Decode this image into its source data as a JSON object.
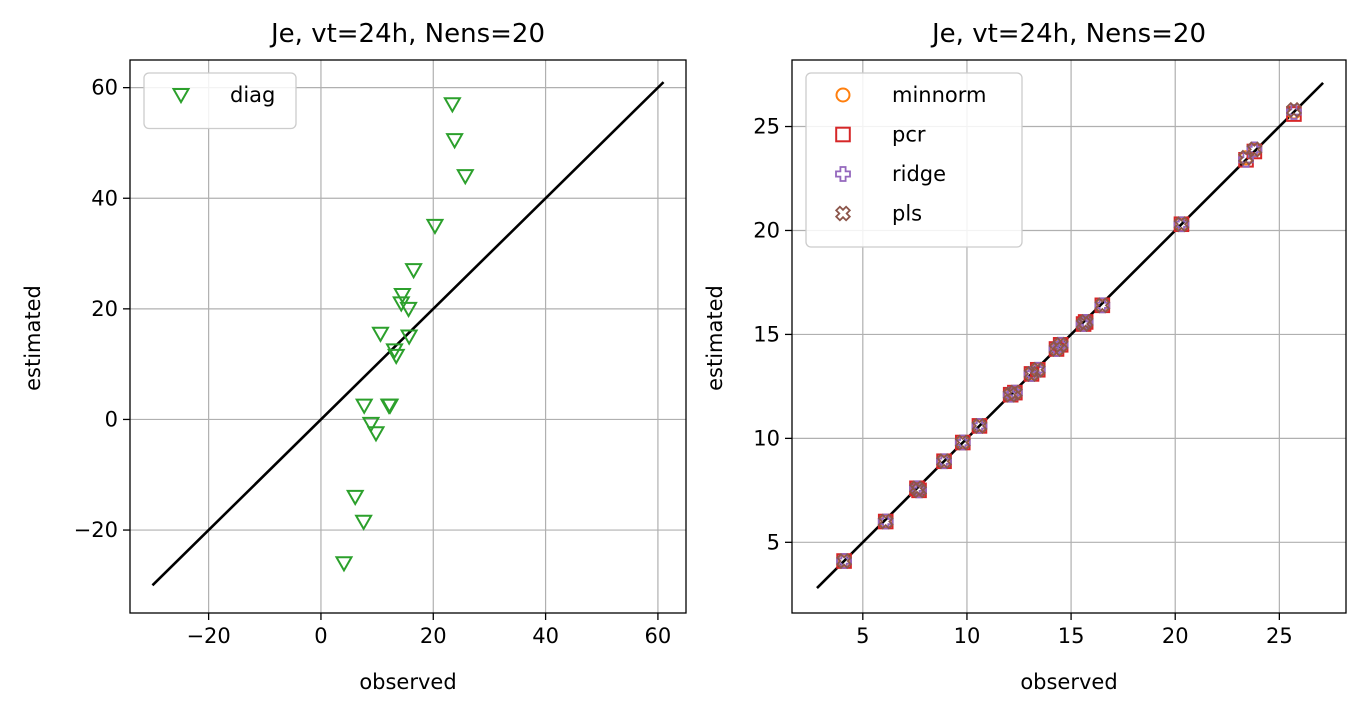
{
  "chart_data": [
    {
      "type": "scatter",
      "title": "Je, vt=24h, Nens=20",
      "xlabel": "observed",
      "ylabel": "estimated",
      "xlim": [
        -34,
        65
      ],
      "ylim": [
        -35,
        65
      ],
      "xticks": [
        -20,
        0,
        20,
        40,
        60
      ],
      "yticks": [
        -20,
        0,
        20,
        40,
        60
      ],
      "xtick_labels": [
        "−20",
        "0",
        "20",
        "40",
        "60"
      ],
      "ytick_labels": [
        "−20",
        "0",
        "20",
        "40",
        "60"
      ],
      "grid": true,
      "legend_position": "upper-left",
      "reference_line": [
        [
          -30,
          -30
        ],
        [
          61,
          61
        ]
      ],
      "series": [
        {
          "name": "diag",
          "marker": "triangle-down",
          "color": "#2ca02c",
          "points": [
            [
              4.1,
              -26
            ],
            [
              6.1,
              -14
            ],
            [
              7.6,
              -18.5
            ],
            [
              7.7,
              2.5
            ],
            [
              8.9,
              -0.8
            ],
            [
              9.8,
              -2.5
            ],
            [
              10.6,
              15.5
            ],
            [
              12.1,
              2.5
            ],
            [
              12.3,
              2.5
            ],
            [
              13.1,
              12.5
            ],
            [
              13.4,
              11.5
            ],
            [
              14.3,
              21
            ],
            [
              14.5,
              22.5
            ],
            [
              15.6,
              20
            ],
            [
              15.7,
              15
            ],
            [
              16.5,
              27
            ],
            [
              20.3,
              35
            ],
            [
              23.4,
              57
            ],
            [
              23.8,
              50.5
            ],
            [
              25.7,
              44
            ]
          ]
        }
      ]
    },
    {
      "type": "scatter",
      "title": "Je, vt=24h, Nens=20",
      "xlabel": "observed",
      "ylabel": "estimated",
      "xlim": [
        1.6,
        28.2
      ],
      "ylim": [
        1.6,
        28.2
      ],
      "xticks": [
        5,
        10,
        15,
        20,
        25
      ],
      "yticks": [
        5,
        10,
        15,
        20,
        25
      ],
      "xtick_labels": [
        "5",
        "10",
        "15",
        "20",
        "25"
      ],
      "ytick_labels": [
        "5",
        "10",
        "15",
        "20",
        "25"
      ],
      "grid": true,
      "legend_position": "upper-left",
      "reference_line": [
        [
          2.8,
          2.8
        ],
        [
          27.1,
          27.1
        ]
      ],
      "x": [
        4.1,
        6.1,
        7.6,
        7.7,
        8.9,
        9.8,
        10.6,
        12.1,
        12.3,
        13.1,
        13.4,
        14.3,
        14.5,
        15.6,
        15.7,
        16.5,
        20.3,
        23.4,
        23.8,
        25.7
      ],
      "series": [
        {
          "name": "minnorm",
          "marker": "circle",
          "color": "#ff7f0e",
          "y": [
            4.1,
            6.0,
            7.6,
            7.5,
            8.9,
            9.8,
            10.6,
            12.1,
            12.2,
            13.1,
            13.3,
            14.3,
            14.5,
            15.5,
            15.6,
            16.4,
            20.3,
            23.5,
            23.9,
            25.7
          ]
        },
        {
          "name": "pcr",
          "marker": "square",
          "color": "#d62728",
          "y": [
            4.1,
            6.0,
            7.6,
            7.5,
            8.9,
            9.8,
            10.6,
            12.1,
            12.2,
            13.1,
            13.3,
            14.3,
            14.5,
            15.5,
            15.6,
            16.4,
            20.3,
            23.4,
            23.8,
            25.6
          ]
        },
        {
          "name": "ridge",
          "marker": "plus",
          "color": "#9467bd",
          "y": [
            4.1,
            6.0,
            7.6,
            7.5,
            8.9,
            9.8,
            10.6,
            12.1,
            12.2,
            13.1,
            13.3,
            14.3,
            14.5,
            15.5,
            15.6,
            16.4,
            20.3,
            23.4,
            23.9,
            25.7
          ]
        },
        {
          "name": "pls",
          "marker": "x-filled",
          "color": "#8c564b",
          "y": [
            4.1,
            6.0,
            7.6,
            7.5,
            8.9,
            9.8,
            10.6,
            12.1,
            12.2,
            13.1,
            13.3,
            14.3,
            14.5,
            15.5,
            15.6,
            16.4,
            20.3,
            23.5,
            23.9,
            25.8
          ]
        }
      ]
    }
  ]
}
